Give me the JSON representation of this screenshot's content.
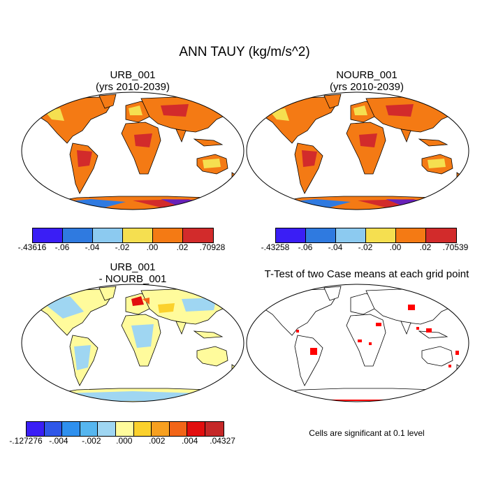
{
  "title": "ANN TAUY (kg/m/s^2)",
  "panels": [
    {
      "name": "URB_001",
      "subtitle": "(yrs 2010-2039)"
    },
    {
      "name": "NOURB_001",
      "subtitle": "(yrs 2010-2039)"
    },
    {
      "name": "URB_001",
      "subtitle": "- NOURB_001"
    },
    {
      "name": "T-Test of two Case means at each grid point"
    }
  ],
  "colorbars": [
    {
      "colors": [
        "#3a1ef5",
        "#2f7ae0",
        "#8ccaf0",
        "#f5df50",
        "#f47a14",
        "#d22b2b"
      ],
      "labels": [
        "-.43616",
        "-.06",
        "-.04",
        "-.02",
        ".00",
        ".02",
        ".70928"
      ]
    },
    {
      "colors": [
        "#3a1ef5",
        "#2f7ae0",
        "#8ccaf0",
        "#f5df50",
        "#f47a14",
        "#d22b2b"
      ],
      "labels": [
        "-.43258",
        "-.06",
        "-.04",
        "-.02",
        ".00",
        ".02",
        ".70539"
      ]
    },
    {
      "colors": [
        "#3a1ef5",
        "#2f57e8",
        "#2f90ee",
        "#56b6ef",
        "#9fd6f2",
        "#fffb9c",
        "#fbd12c",
        "#f7a020",
        "#f26518",
        "#e20e0e",
        "#c52828"
      ],
      "labels": [
        "-.127276",
        "-.004",
        "-.002",
        ".000",
        ".002",
        ".004",
        ".04327"
      ]
    }
  ],
  "significance_note": "Cells are significant at 0.1 level",
  "colors": {
    "ttest_marks": "#ff0000",
    "coastline": "#000000"
  }
}
